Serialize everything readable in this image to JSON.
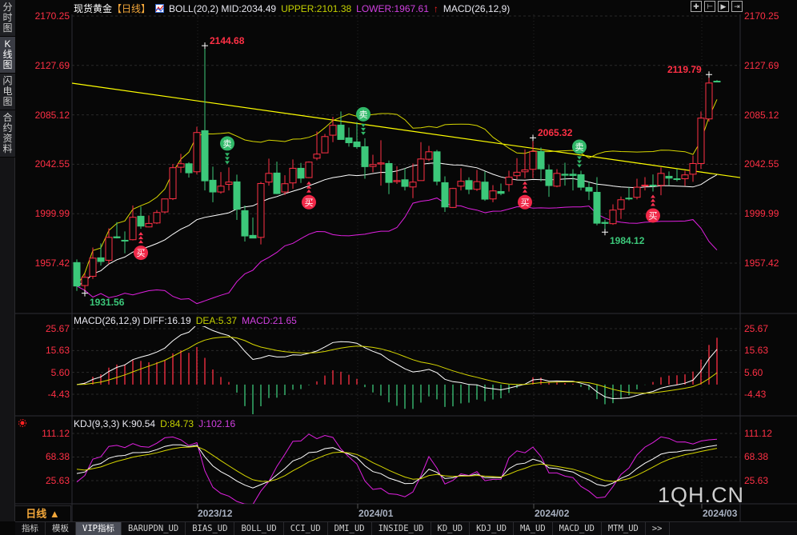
{
  "sidebar": {
    "tabs": [
      {
        "label": "分时图",
        "active": false
      },
      {
        "label": "K线图",
        "active": true
      },
      {
        "label": "闪电图",
        "active": false
      },
      {
        "label": "合约资料",
        "active": false
      }
    ]
  },
  "header": {
    "symbol": "现货黄金",
    "period_tag": "【日线】",
    "boll_label": "BOLL(20,2) MID:2034.49",
    "upper": "UPPER:2101.38",
    "lower": "LOWER:1967.61",
    "macd_label": "MACD(26,12,9)",
    "icon": "indicator-chart-icon",
    "tools": [
      "crosshair-icon",
      "zoom-range-icon",
      "play-forward-icon",
      "scroll-end-icon"
    ]
  },
  "price_axis": [
    "2170.25",
    "2127.69",
    "2085.12",
    "2042.55",
    "1999.99",
    "1957.42"
  ],
  "price_axis_values": [
    2170.25,
    2127.69,
    2085.12,
    2042.55,
    1999.99,
    1957.42
  ],
  "annotations": [
    {
      "text": "2144.68",
      "kind": "high"
    },
    {
      "text": "1931.56",
      "kind": "low"
    },
    {
      "text": "2065.32",
      "kind": "high"
    },
    {
      "text": "1984.12",
      "kind": "low"
    },
    {
      "text": "2119.79",
      "kind": "high"
    }
  ],
  "signals": {
    "buy_text": "买",
    "sell_text": "卖",
    "buy": [
      8,
      29,
      56,
      72
    ],
    "sell": [
      19,
      36,
      63
    ]
  },
  "trendline": {
    "start_price": 2112.4,
    "end_price": 2031.1
  },
  "macd": {
    "header": "MACD(26,12,9) DIFF:16.19",
    "dea": "DEA:5.37",
    "macd": "MACD:21.65",
    "axis": [
      "25.67",
      "15.63",
      "5.60",
      "-4.43"
    ],
    "axis_values": [
      25.67,
      15.63,
      5.6,
      -4.43
    ]
  },
  "kdj": {
    "header": "KDJ(9,3,3) K:90.54",
    "d": "D:84.73",
    "j": "J:102.16",
    "axis": [
      "111.12",
      "68.38",
      "25.63"
    ],
    "axis_values": [
      111.12,
      68.38,
      25.63
    ]
  },
  "dates": [
    "2023/12",
    "2024/01",
    "2024/02",
    "2024/03"
  ],
  "period_button": "日线 ▲",
  "bottom_tabs": [
    {
      "label": "指标"
    },
    {
      "label": "模板"
    },
    {
      "label": "VIP指标",
      "active": true
    },
    {
      "label": "BARUPDN_UD"
    },
    {
      "label": "BIAS_UD"
    },
    {
      "label": "BOLL_UD"
    },
    {
      "label": "CCI_UD"
    },
    {
      "label": "DMI_UD"
    },
    {
      "label": "INSIDE_UD"
    },
    {
      "label": "KD_UD"
    },
    {
      "label": "KDJ_UD"
    },
    {
      "label": "MA_UD"
    },
    {
      "label": "MACD_UD"
    },
    {
      "label": "MTM_UD"
    },
    {
      "label": ">>"
    }
  ],
  "watermark": "1QH.CN",
  "colors": {
    "up": "#ff3045",
    "down": "#3cc87a",
    "mid": "#ffffff",
    "upper": "#d6d600",
    "lower": "#e020e0",
    "trend": "#ffff00",
    "axis_text": "#ff3045"
  },
  "chart_data": {
    "type": "candlestick",
    "ohlc_order": [
      "open",
      "high",
      "low",
      "close"
    ],
    "candles": [
      [
        1957.9,
        1960.6,
        1933.5,
        1937.7
      ],
      [
        1938.1,
        1948.7,
        1931.56,
        1945.2
      ],
      [
        1946.1,
        1970.9,
        1943.8,
        1961.7
      ],
      [
        1962.0,
        1974.4,
        1955.3,
        1958.8
      ],
      [
        1959.9,
        1987.4,
        1956.5,
        1979.6
      ],
      [
        1980.1,
        1992.7,
        1978.7,
        1979.2
      ],
      [
        1977.1,
        1984.7,
        1965.9,
        1976.4
      ],
      [
        1977.6,
        2007.0,
        1977.0,
        1996.9
      ],
      [
        1997.8,
        2006.1,
        1987.0,
        1989.3
      ],
      [
        1988.6,
        1998.5,
        1988.3,
        1991.6
      ],
      [
        1992.0,
        2003.1,
        1991.1,
        2001.0
      ],
      [
        2001.5,
        2013.0,
        2000.3,
        2012.7
      ],
      [
        2012.9,
        2042.8,
        2011.8,
        2039.6
      ],
      [
        2040.0,
        2051.5,
        2035.2,
        2043.0
      ],
      [
        2043.0,
        2044.4,
        2031.1,
        2035.2
      ],
      [
        2036.1,
        2074.9,
        2033.8,
        2069.9
      ],
      [
        2071.5,
        2144.68,
        2020.0,
        2028.3
      ],
      [
        2028.8,
        2040.5,
        2009.9,
        2018.7
      ],
      [
        2018.7,
        2035.9,
        2017.3,
        2023.7
      ],
      [
        2025.3,
        2039.8,
        2020.0,
        2027.2
      ],
      [
        2027.4,
        2033.6,
        1994.6,
        2003.8
      ],
      [
        2002.6,
        2007.0,
        1976.0,
        1980.8
      ],
      [
        1981.3,
        1996.7,
        1979.0,
        1979.0
      ],
      [
        1979.6,
        2027.4,
        1973.5,
        2026.0
      ],
      [
        2027.2,
        2047.4,
        2024.2,
        2034.7
      ],
      [
        2035.0,
        2044.8,
        2016.8,
        2017.3
      ],
      [
        2018.7,
        2033.1,
        2016.1,
        2025.8
      ],
      [
        2026.5,
        2046.7,
        2021.4,
        2039.1
      ],
      [
        2039.1,
        2043.7,
        2026.5,
        2030.6
      ],
      [
        2031.1,
        2045.0,
        2030.6,
        2044.4
      ],
      [
        2047.8,
        2070.8,
        2046.0,
        2051.3
      ],
      [
        2052.4,
        2068.7,
        2052.4,
        2066.4
      ],
      [
        2067.6,
        2083.4,
        2061.6,
        2076.1
      ],
      [
        2076.3,
        2088.0,
        2063.9,
        2063.9
      ],
      [
        2065.3,
        2074.2,
        2057.7,
        2061.1
      ],
      [
        2061.8,
        2078.8,
        2055.9,
        2057.7
      ],
      [
        2057.7,
        2065.0,
        2030.1,
        2040.5
      ],
      [
        2040.7,
        2050.8,
        2035.7,
        2042.3
      ],
      [
        2042.8,
        2063.2,
        2024.2,
        2043.7
      ],
      [
        2043.2,
        2045.8,
        2016.8,
        2026.9
      ],
      [
        2027.6,
        2040.9,
        2025.6,
        2028.5
      ],
      [
        2029.2,
        2039.1,
        2020.0,
        2023.5
      ],
      [
        2023.0,
        2043.2,
        2013.4,
        2027.2
      ],
      [
        2028.5,
        2061.6,
        2028.5,
        2047.1
      ],
      [
        2046.9,
        2058.4,
        2045.3,
        2053.3
      ],
      [
        2053.3,
        2054.9,
        2024.4,
        2027.9
      ],
      [
        2026.7,
        2032.2,
        2001.5,
        2005.8
      ],
      [
        2005.4,
        2022.3,
        2004.9,
        2021.7
      ],
      [
        2023.7,
        2039.1,
        2020.0,
        2027.9
      ],
      [
        2028.5,
        2031.3,
        2016.8,
        2021.0
      ],
      [
        2021.0,
        2037.7,
        2019.6,
        2027.6
      ],
      [
        2027.2,
        2036.4,
        2011.1,
        2012.5
      ],
      [
        2012.7,
        2024.6,
        2009.9,
        2019.6
      ],
      [
        2019.1,
        2026.0,
        2015.9,
        2017.5
      ],
      [
        2025.1,
        2037.0,
        2019.1,
        2031.5
      ],
      [
        2032.7,
        2047.8,
        2029.7,
        2035.7
      ],
      [
        2036.1,
        2055.4,
        2030.6,
        2037.7
      ],
      [
        2038.2,
        2065.32,
        2030.6,
        2053.6
      ],
      [
        2053.6,
        2057.0,
        2027.9,
        2038.6
      ],
      [
        2037.7,
        2042.1,
        2014.5,
        2024.2
      ],
      [
        2023.7,
        2038.4,
        2022.8,
        2034.7
      ],
      [
        2034.0,
        2043.9,
        2024.2,
        2033.1
      ],
      [
        2034.0,
        2038.4,
        2020.0,
        2032.9
      ],
      [
        2033.6,
        2037.0,
        2020.0,
        2022.8
      ],
      [
        2022.6,
        2027.6,
        2011.8,
        2019.4
      ],
      [
        2018.4,
        2031.5,
        1990.0,
        1991.8
      ],
      [
        1992.5,
        1995.0,
        1984.12,
        1991.6
      ],
      [
        1991.4,
        2008.1,
        1990.4,
        2003.1
      ],
      [
        2003.8,
        2014.8,
        1995.5,
        2012.0
      ],
      [
        2013.4,
        2022.8,
        2011.5,
        2012.7
      ],
      [
        2014.1,
        2030.1,
        2012.3,
        2022.8
      ],
      [
        2024.0,
        2031.5,
        2020.0,
        2024.6
      ],
      [
        2024.6,
        2033.8,
        2019.1,
        2024.0
      ],
      [
        2024.4,
        2039.8,
        2015.9,
        2034.7
      ],
      [
        2032.2,
        2036.4,
        2024.6,
        2030.6
      ],
      [
        2030.1,
        2038.6,
        2027.9,
        2029.5
      ],
      [
        2030.1,
        2037.0,
        2024.0,
        2033.4
      ],
      [
        2034.0,
        2050.1,
        2027.4,
        2043.2
      ],
      [
        2043.2,
        2088.0,
        2038.6,
        2082.3
      ],
      [
        2081.6,
        2119.79,
        2079.3,
        2112.5
      ],
      [
        2114.1,
        2115.1,
        2113.5,
        2113.5
      ]
    ],
    "date_ticks": [
      {
        "label": "2023/12",
        "candle": 15
      },
      {
        "label": "2024/01",
        "candle": 35
      },
      {
        "label": "2024/02",
        "candle": 57
      },
      {
        "label": "2024/03",
        "candle": 78
      }
    ],
    "ylim": [
      1920,
      2175
    ],
    "indicators": [
      "BOLL(20,2)",
      "MACD(26,12,9)",
      "KDJ(9,3,3)"
    ],
    "grid": true
  }
}
